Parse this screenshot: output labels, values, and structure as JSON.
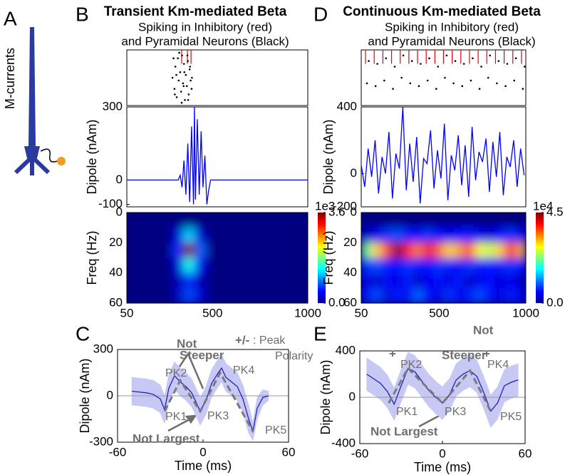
{
  "panel_labels": [
    "A",
    "B",
    "C",
    "D",
    "E"
  ],
  "neuron_label": "M-currents",
  "chart_data": [
    {
      "type": "raster",
      "title": "Transient Km-mediated Beta",
      "subtitle": [
        "Spiking in Inhibitory (red)",
        "and Pyramidal Neurons (Black)"
      ],
      "xlim": [
        50,
        1000
      ],
      "ylim": [
        0,
        100
      ],
      "red_spikes": {
        "color": "#e8000b",
        "x": [
          338,
          368,
          387
        ]
      },
      "black_spikes": {
        "color": "#000000",
        "x": [
          290,
          300,
          305,
          312,
          318,
          322,
          330,
          335,
          340,
          345,
          350,
          355,
          360,
          365,
          370,
          375,
          380,
          385,
          390,
          295,
          310,
          325,
          338,
          352,
          368,
          382,
          392,
          302,
          348,
          372
        ],
        "y": [
          50,
          30,
          70,
          15,
          85,
          45,
          60,
          25,
          90,
          40,
          75,
          10,
          55,
          35,
          80,
          20,
          65,
          45,
          30,
          85,
          55,
          95,
          5,
          60,
          90,
          70,
          50,
          20,
          35,
          10
        ]
      }
    },
    {
      "type": "line",
      "ylabel": "Dipole (nAm)",
      "color": "#0000ff",
      "xlim": [
        50,
        1000
      ],
      "ylim": [
        -110,
        300
      ],
      "yticks": [
        300,
        0,
        -100
      ],
      "x": [
        50,
        320,
        330,
        340,
        350,
        360,
        370,
        380,
        390,
        400,
        405,
        410,
        420,
        430,
        440,
        450,
        460,
        470,
        480,
        490,
        1000
      ],
      "values": [
        0,
        0,
        20,
        -30,
        80,
        -60,
        150,
        -90,
        220,
        -100,
        300,
        -80,
        250,
        -60,
        200,
        -30,
        100,
        -100,
        -40,
        0,
        0
      ]
    },
    {
      "type": "heatmap",
      "ylabel": "Freq (Hz)",
      "xlim": [
        50,
        1000
      ],
      "ylim": [
        60,
        0
      ],
      "xticks": [
        50,
        500,
        1000
      ],
      "yticks": [
        0,
        20,
        40,
        60
      ],
      "colorbar": {
        "label": "1e3",
        "lim": [
          0,
          3.6
        ],
        "ticks": [
          3.6,
          {
            "value": 0,
            "label": "0.0"
          }
        ]
      },
      "z": [
        [
          0,
          0,
          0,
          0,
          0,
          0,
          0,
          0,
          0,
          0,
          0,
          0,
          0,
          0,
          0,
          0
        ],
        [
          0,
          0,
          0,
          0,
          0.3,
          1.2,
          0.3,
          0,
          0,
          0,
          0,
          0,
          0,
          0,
          0,
          0
        ],
        [
          0,
          0,
          0,
          0,
          0.6,
          3.6,
          0.8,
          0,
          0,
          0,
          0,
          0,
          0,
          0,
          0,
          0
        ],
        [
          0,
          0,
          0,
          0,
          0.3,
          1.4,
          0.4,
          0,
          0,
          0,
          0,
          0,
          0,
          0,
          0,
          0
        ],
        [
          0,
          0,
          0,
          0,
          0.2,
          0.6,
          0.2,
          0,
          0,
          0,
          0,
          0,
          0,
          0,
          0,
          0
        ],
        [
          0,
          0,
          0,
          0,
          0.2,
          0.7,
          0.3,
          0,
          0,
          0,
          0,
          0,
          0,
          0,
          0,
          0
        ]
      ]
    },
    {
      "type": "band_line",
      "xlabel": "Time (ms)",
      "ylabel": "Dipole (nAm)",
      "xlim": [
        -60,
        60
      ],
      "ylim": [
        -300,
        300
      ],
      "xticks": [
        -60,
        0,
        60
      ],
      "yticks": [
        300,
        0,
        -300
      ],
      "color": "#2020c0",
      "band_color": "#c8c8f4",
      "dashed_color": "#7a7a7a",
      "x": [
        -50,
        -45,
        -40,
        -35,
        -30,
        -27,
        -24,
        -20,
        -16,
        -12,
        -8,
        -5,
        -2,
        2,
        6,
        10,
        13,
        16,
        20,
        24,
        28,
        32,
        35,
        38,
        42,
        46
      ],
      "values": [
        30,
        25,
        20,
        10,
        -20,
        -90,
        50,
        130,
        90,
        60,
        20,
        -40,
        -100,
        -30,
        80,
        140,
        180,
        120,
        90,
        60,
        -20,
        -150,
        -230,
        -80,
        -10,
        0
      ],
      "upper": [
        120,
        115,
        110,
        100,
        70,
        0,
        140,
        220,
        180,
        150,
        110,
        50,
        -10,
        60,
        170,
        230,
        270,
        210,
        180,
        150,
        70,
        -60,
        -170,
        -10,
        40,
        30
      ],
      "lower": [
        -60,
        -65,
        -70,
        -80,
        -110,
        -180,
        -40,
        40,
        0,
        -30,
        -70,
        -130,
        -190,
        -120,
        -10,
        50,
        90,
        30,
        0,
        -30,
        -110,
        -240,
        -290,
        -150,
        -60,
        -30
      ],
      "dashed": {
        "x": [
          -27,
          -16,
          -2,
          12,
          35
        ],
        "values": [
          -100,
          100,
          -100,
          150,
          -230
        ]
      },
      "annotations": [
        "PK1",
        "PK2",
        "PK3",
        "PK4",
        "PK5",
        "Not",
        "Steeper",
        "Not Largest",
        "+/-",
        ": Peak",
        "Polarity"
      ]
    },
    {
      "type": "raster",
      "title": "Continuous Km-mediated Beta",
      "subtitle": [
        "Spiking in Inhibitory (red)",
        "and Pyramidal Neurons (Black)"
      ],
      "xlim": [
        50,
        1000
      ],
      "ylim": [
        0,
        100
      ],
      "red_spikes": {
        "color": "#e8000b",
        "x": [
          75,
          125,
          175,
          225,
          275,
          325,
          375,
          425,
          475,
          525,
          575,
          625,
          675,
          725,
          775,
          825,
          875,
          925,
          975
        ]
      },
      "black_spikes": {
        "color": "#000000",
        "x": [
          83,
          93,
          133,
          143,
          183,
          193,
          233,
          243,
          283,
          293,
          333,
          343,
          383,
          393,
          433,
          443,
          483,
          493,
          533,
          543,
          583,
          593,
          633,
          643,
          683,
          693,
          733,
          743,
          783,
          793,
          833,
          843,
          883,
          893,
          933,
          943,
          983,
          993
        ],
        "y": [
          40,
          80,
          35,
          75,
          45,
          85,
          30,
          70,
          50,
          90,
          40,
          80,
          35,
          75,
          45,
          85,
          30,
          70,
          50,
          90,
          40,
          80,
          35,
          75,
          45,
          85,
          30,
          70,
          50,
          90,
          40,
          80,
          35,
          75,
          45,
          85,
          30,
          70
        ]
      }
    },
    {
      "type": "line",
      "ylabel": "Dipole (nAm)",
      "color": "#0000ff",
      "xlim": [
        50,
        1000
      ],
      "ylim": [
        -200,
        400
      ],
      "yticks": [
        400,
        0,
        -200
      ],
      "x": [
        50,
        70,
        90,
        110,
        130,
        150,
        170,
        190,
        210,
        230,
        250,
        270,
        290,
        310,
        330,
        350,
        370,
        390,
        410,
        430,
        450,
        470,
        490,
        510,
        530,
        550,
        570,
        590,
        610,
        630,
        650,
        670,
        690,
        710,
        730,
        750,
        770,
        790,
        810,
        830,
        850,
        870,
        890,
        910,
        930,
        950,
        970,
        990
      ],
      "values": [
        50,
        -80,
        150,
        -20,
        200,
        -120,
        100,
        0,
        250,
        -150,
        120,
        30,
        400,
        -100,
        180,
        -50,
        220,
        -180,
        90,
        60,
        260,
        -90,
        140,
        -30,
        300,
        -160,
        110,
        20,
        230,
        -70,
        170,
        -140,
        280,
        -40,
        130,
        70,
        210,
        -110,
        190,
        -20,
        250,
        -130,
        100,
        40,
        200,
        -80,
        150,
        -10
      ]
    },
    {
      "type": "heatmap",
      "ylabel": "Freq (Hz)",
      "xlim": [
        50,
        1000
      ],
      "ylim": [
        60,
        0
      ],
      "xticks": [
        50,
        500,
        1000
      ],
      "yticks": [
        0,
        20,
        40,
        60
      ],
      "colorbar": {
        "label": "1e4",
        "lim": [
          0,
          4.5
        ],
        "ticks": [
          4.5,
          {
            "value": 0,
            "label": "0.0"
          }
        ]
      },
      "z": [
        [
          0,
          0,
          0,
          0,
          0,
          0,
          0,
          0,
          0,
          0,
          0,
          0,
          0,
          0,
          0,
          0
        ],
        [
          0.3,
          0.5,
          0.8,
          0.9,
          0.7,
          0.6,
          0.8,
          0.6,
          0.5,
          0.6,
          0.7,
          0.5,
          0.4,
          0.6,
          0.8,
          0.5
        ],
        [
          2.2,
          3.0,
          3.6,
          4.5,
          3.8,
          3.4,
          4.0,
          3.5,
          3.0,
          3.2,
          3.6,
          2.8,
          2.6,
          3.0,
          3.8,
          3.2
        ],
        [
          0.8,
          0.9,
          0.7,
          0.6,
          0.8,
          0.7,
          0.6,
          0.8,
          0.7,
          0.6,
          0.8,
          0.7,
          0.6,
          0.7,
          0.8,
          0.6
        ],
        [
          0.5,
          0.3,
          0.6,
          0.4,
          0.7,
          0.3,
          0.5,
          0.6,
          0.4,
          0.7,
          0.3,
          0.5,
          0.6,
          0.4,
          0.5,
          0.3
        ],
        [
          0.6,
          0.9,
          0.4,
          0.7,
          0.5,
          1.0,
          0.6,
          0.4,
          0.8,
          0.5,
          0.7,
          0.9,
          0.6,
          0.4,
          0.7,
          0.5
        ]
      ]
    },
    {
      "type": "band_line",
      "xlabel": "Time (ms)",
      "ylabel": "Dipole (nAm)",
      "xlim": [
        -60,
        60
      ],
      "ylim": [
        -400,
        400
      ],
      "xticks": [
        -60,
        0,
        60
      ],
      "yticks": [
        400,
        0,
        -400
      ],
      "color": "#2020c0",
      "band_color": "#c8c8f4",
      "dashed_color": "#7a7a7a",
      "x": [
        -55,
        -50,
        -45,
        -40,
        -35,
        -30,
        -25,
        -20,
        -15,
        -10,
        -5,
        0,
        5,
        10,
        15,
        20,
        25,
        30,
        35,
        40,
        45,
        50,
        55
      ],
      "values": [
        200,
        160,
        120,
        50,
        -60,
        100,
        250,
        220,
        140,
        60,
        0,
        -50,
        20,
        150,
        200,
        230,
        180,
        40,
        -120,
        -50,
        100,
        130,
        150
      ],
      "upper": [
        340,
        300,
        260,
        190,
        80,
        240,
        390,
        360,
        280,
        200,
        140,
        90,
        160,
        290,
        340,
        370,
        320,
        180,
        20,
        90,
        240,
        270,
        290
      ],
      "lower": [
        60,
        20,
        -20,
        -90,
        -200,
        -40,
        110,
        80,
        0,
        -80,
        -140,
        -190,
        -120,
        10,
        60,
        90,
        40,
        -100,
        -260,
        -190,
        -40,
        -10,
        10
      ],
      "dashed": {
        "x": [
          -39,
          -25,
          0,
          20,
          35
        ],
        "values": [
          -50,
          250,
          -50,
          230,
          -120
        ]
      },
      "annotations": [
        "PK1",
        "PK2",
        "PK3",
        "PK4",
        "PK5",
        "+",
        "+",
        "Not",
        "Steeper",
        "Not Largest"
      ]
    }
  ]
}
